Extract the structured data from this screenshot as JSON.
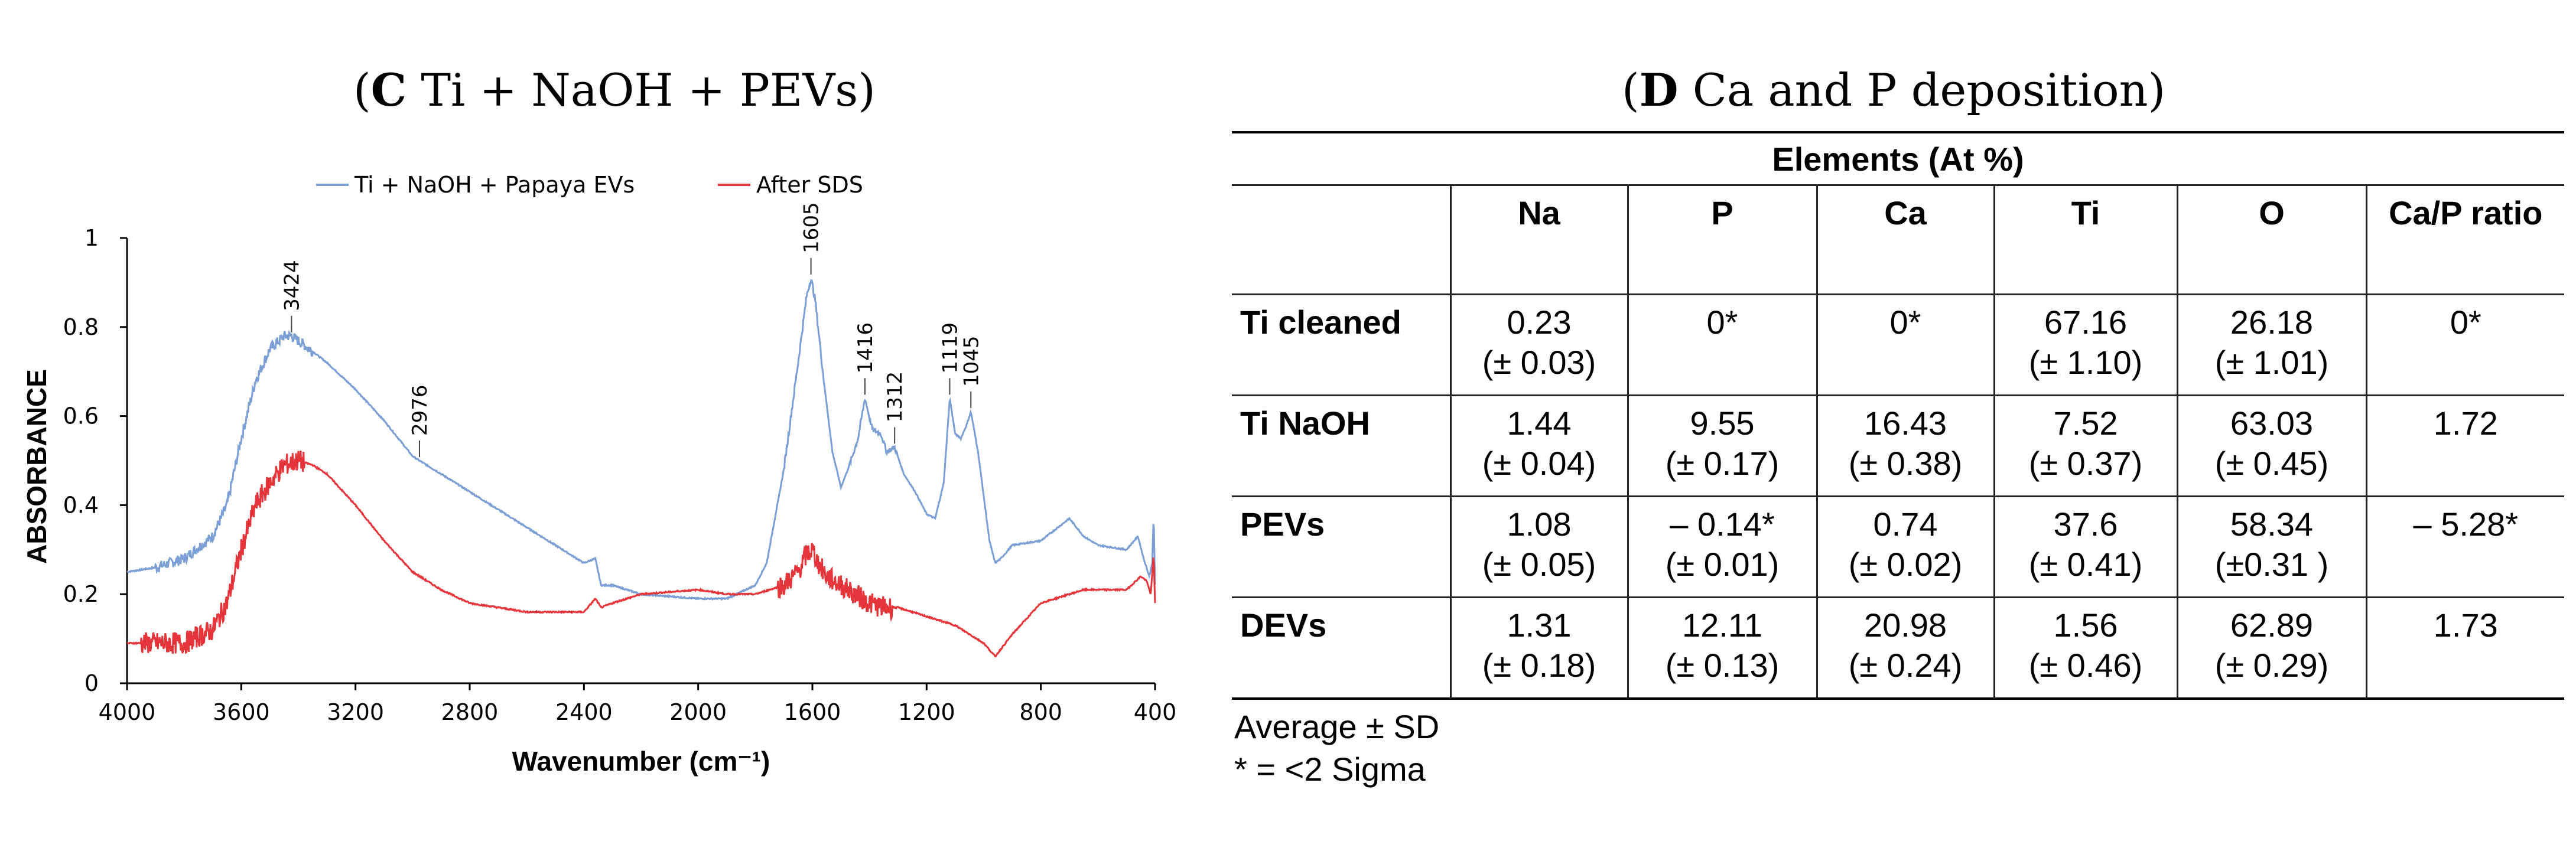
{
  "panel_c": {
    "title_letter": "C",
    "title_rest": " Ti + NaOH + PEVs"
  },
  "panel_d": {
    "title_letter": "D",
    "title_rest": " Ca and P deposition"
  },
  "colors": {
    "blue": "#7b9fd4",
    "red": "#e5343a",
    "axis": "#000000"
  },
  "chart_data": {
    "type": "line",
    "title": "(C) Ti + NaOH + PEVs",
    "xlabel": "Wavenumber (cm⁻¹)",
    "ylabel": "ABSORBANCE",
    "xlim": [
      4000,
      400
    ],
    "ylim": [
      0,
      1
    ],
    "x_ticks": [
      "4000",
      "3600",
      "3200",
      "2800",
      "2400",
      "2000",
      "1600",
      "1200",
      "800",
      "400"
    ],
    "y_ticks": [
      "0",
      "0.2",
      "0.4",
      "0.6",
      "0.8",
      "1"
    ],
    "legend": [
      "Ti + NaOH + Papaya EVs",
      "After SDS"
    ],
    "series": [
      {
        "name": "Ti + NaOH + Papaya EVs",
        "x": [
          4000,
          3900,
          3800,
          3700,
          3650,
          3600,
          3550,
          3500,
          3450,
          3424,
          3380,
          3300,
          3200,
          3100,
          3000,
          2976,
          2900,
          2800,
          2600,
          2400,
          2360,
          2340,
          2300,
          2200,
          2000,
          1900,
          1800,
          1760,
          1700,
          1650,
          1620,
          1605,
          1590,
          1560,
          1530,
          1500,
          1470,
          1440,
          1416,
          1390,
          1360,
          1340,
          1312,
          1280,
          1240,
          1200,
          1170,
          1140,
          1119,
          1100,
          1080,
          1060,
          1045,
          1020,
          1000,
          980,
          960,
          940,
          900,
          800,
          700,
          650,
          600,
          500,
          460,
          440,
          420,
          410,
          405,
          400
        ],
        "y": [
          0.25,
          0.26,
          0.28,
          0.33,
          0.4,
          0.55,
          0.68,
          0.75,
          0.78,
          0.78,
          0.76,
          0.72,
          0.66,
          0.59,
          0.51,
          0.5,
          0.47,
          0.43,
          0.35,
          0.27,
          0.28,
          0.22,
          0.22,
          0.2,
          0.19,
          0.19,
          0.22,
          0.27,
          0.48,
          0.72,
          0.87,
          0.91,
          0.86,
          0.68,
          0.52,
          0.44,
          0.49,
          0.55,
          0.64,
          0.57,
          0.56,
          0.52,
          0.53,
          0.47,
          0.43,
          0.38,
          0.37,
          0.45,
          0.64,
          0.56,
          0.55,
          0.58,
          0.61,
          0.52,
          0.42,
          0.32,
          0.27,
          0.28,
          0.31,
          0.32,
          0.37,
          0.33,
          0.31,
          0.3,
          0.33,
          0.28,
          0.24,
          0.27,
          0.38,
          0.22
        ]
      },
      {
        "name": "After SDS",
        "x": [
          4000,
          3900,
          3800,
          3700,
          3650,
          3600,
          3550,
          3500,
          3450,
          3400,
          3350,
          3300,
          3200,
          3100,
          3000,
          2900,
          2800,
          2600,
          2400,
          2360,
          2340,
          2300,
          2200,
          2000,
          1900,
          1800,
          1700,
          1650,
          1620,
          1600,
          1580,
          1550,
          1500,
          1450,
          1400,
          1350,
          1300,
          1200,
          1100,
          1000,
          960,
          900,
          800,
          700,
          650,
          600,
          500,
          450,
          430,
          415,
          405,
          400
        ],
        "y": [
          0.09,
          0.09,
          0.09,
          0.12,
          0.18,
          0.3,
          0.4,
          0.45,
          0.49,
          0.5,
          0.49,
          0.47,
          0.4,
          0.32,
          0.25,
          0.21,
          0.18,
          0.16,
          0.16,
          0.19,
          0.17,
          0.18,
          0.2,
          0.21,
          0.2,
          0.2,
          0.22,
          0.25,
          0.29,
          0.3,
          0.27,
          0.24,
          0.22,
          0.2,
          0.18,
          0.17,
          0.17,
          0.15,
          0.13,
          0.09,
          0.06,
          0.11,
          0.18,
          0.2,
          0.21,
          0.21,
          0.21,
          0.24,
          0.23,
          0.2,
          0.29,
          0.18
        ]
      }
    ],
    "annotations": [
      {
        "text": "3424",
        "x": 3424,
        "y": 0.78
      },
      {
        "text": "2976",
        "x": 2976,
        "y": 0.5
      },
      {
        "text": "1605",
        "x": 1605,
        "y": 0.91
      },
      {
        "text": "1416",
        "x": 1416,
        "y": 0.64
      },
      {
        "text": "1312",
        "x": 1312,
        "y": 0.53
      },
      {
        "text": "1119",
        "x": 1119,
        "y": 0.64
      },
      {
        "text": "1045",
        "x": 1045,
        "y": 0.61
      }
    ]
  },
  "table": {
    "group_header": "Elements (At %)",
    "columns": [
      "",
      "Na",
      "P",
      "Ca",
      "Ti",
      "O",
      "Ca/P ratio"
    ],
    "rows": [
      {
        "label": "Ti cleaned",
        "cells": [
          [
            "0.23",
            "(± 0.03)"
          ],
          [
            "0*",
            ""
          ],
          [
            "0*",
            ""
          ],
          [
            "67.16",
            "(± 1.10)"
          ],
          [
            "26.18",
            "(± 1.01)"
          ],
          [
            "0*",
            ""
          ]
        ]
      },
      {
        "label": "Ti NaOH",
        "cells": [
          [
            "1.44",
            "(± 0.04)"
          ],
          [
            "9.55",
            "(± 0.17)"
          ],
          [
            "16.43",
            "(± 0.38)"
          ],
          [
            "7.52",
            "(± 0.37)"
          ],
          [
            "63.03",
            "(± 0.45)"
          ],
          [
            "1.72",
            ""
          ]
        ]
      },
      {
        "label": "PEVs",
        "cells": [
          [
            "1.08",
            "(± 0.05)"
          ],
          [
            "– 0.14*",
            "(± 0.01)"
          ],
          [
            "0.74",
            "(± 0.02)"
          ],
          [
            "37.6",
            "(± 0.41)"
          ],
          [
            "58.34",
            "(±0.31 )"
          ],
          [
            "– 5.28*",
            ""
          ]
        ]
      },
      {
        "label": "DEVs",
        "cells": [
          [
            "1.31",
            "(± 0.18)"
          ],
          [
            "12.11",
            "(± 0.13)"
          ],
          [
            "20.98",
            "(± 0.24)"
          ],
          [
            "1.56",
            "(± 0.46)"
          ],
          [
            "62.89",
            "(± 0.29)"
          ],
          [
            "1.73",
            ""
          ]
        ]
      }
    ],
    "footnotes": [
      "Average ± SD",
      "* = <2 Sigma"
    ]
  }
}
